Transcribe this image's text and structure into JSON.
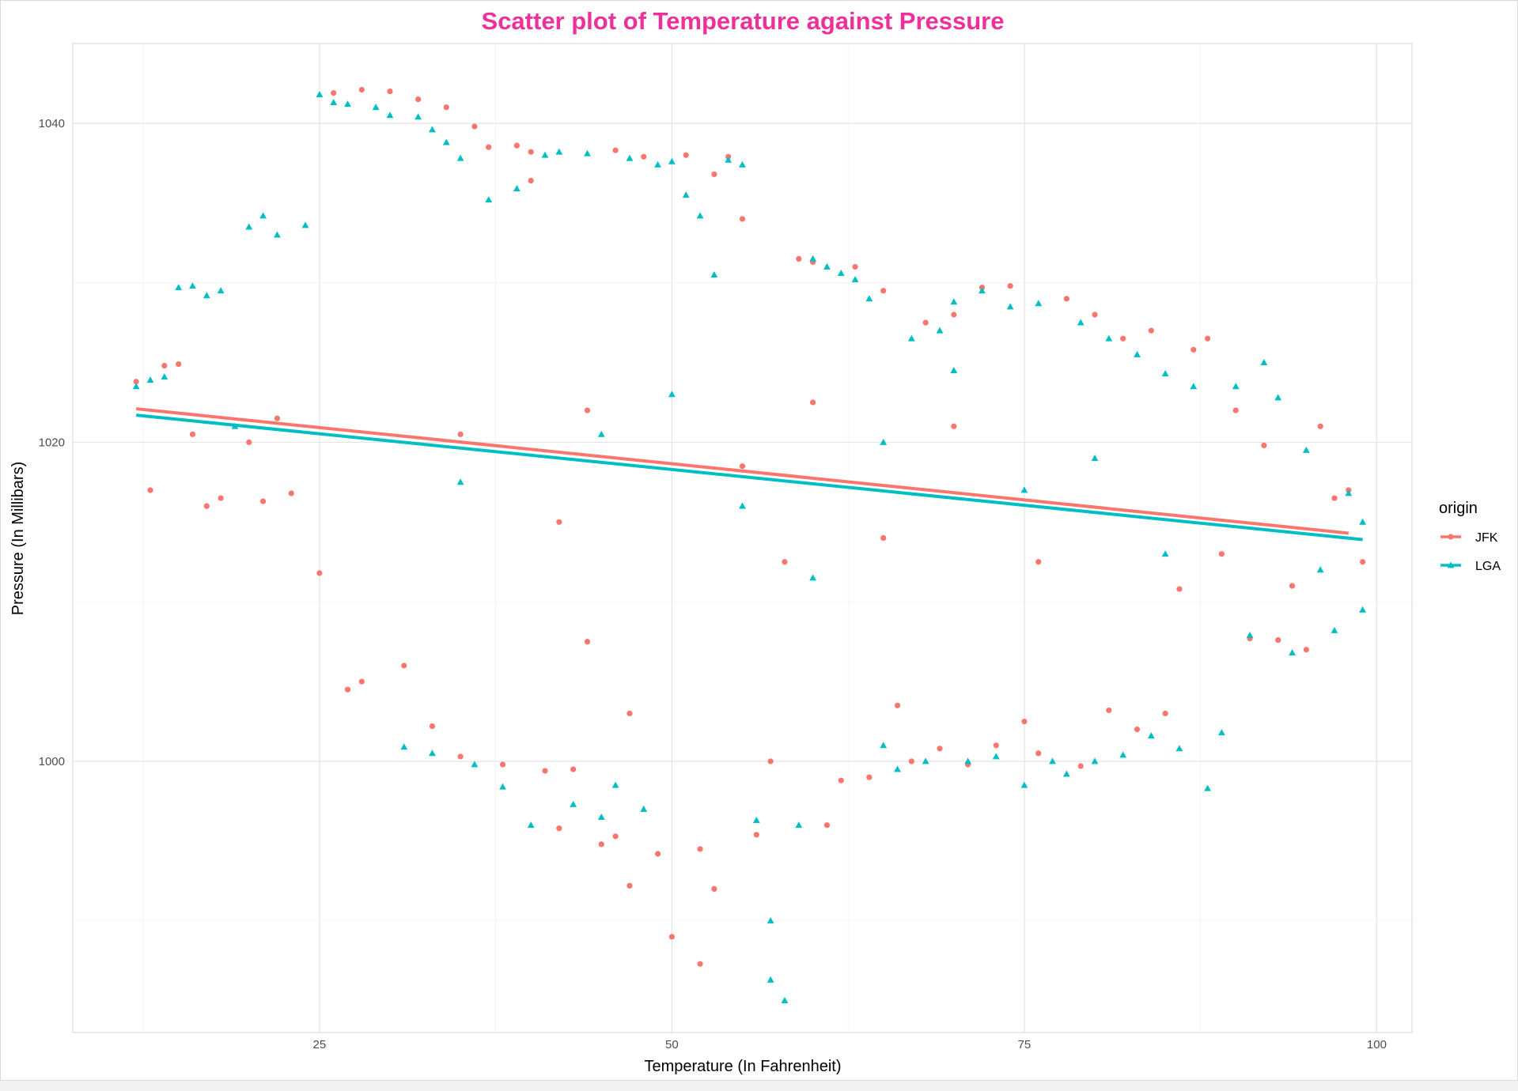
{
  "chart_data": {
    "type": "scatter",
    "title": "Scatter plot of Temperature against Pressure",
    "title_color": "#f0309a",
    "xlabel": "Temperature (In Fahrenheit)",
    "ylabel": "Pressure (In Millibars)",
    "xlim": [
      7.5,
      102.5
    ],
    "ylim": [
      983,
      1045
    ],
    "x_ticks": [
      25,
      50,
      75,
      100
    ],
    "x_tick_labels": [
      "25",
      "50",
      "75",
      "100"
    ],
    "y_ticks": [
      1000,
      1020,
      1040
    ],
    "y_tick_labels": [
      "1000",
      "1020",
      "1040"
    ],
    "grid": true,
    "legend": {
      "title": "origin",
      "position": "right",
      "entries": [
        "JFK",
        "LGA"
      ]
    },
    "series": [
      {
        "name": "JFK",
        "marker": "circle",
        "color": "#f8766d",
        "trend_line": {
          "x": [
            12,
            98
          ],
          "y": [
            1022.1,
            1014.3
          ]
        },
        "points": [
          [
            12,
            1023.8
          ],
          [
            13,
            1017
          ],
          [
            14,
            1024.8
          ],
          [
            15,
            1024.9
          ],
          [
            16,
            1020.5
          ],
          [
            17,
            1016
          ],
          [
            18,
            1016.5
          ],
          [
            20,
            1020
          ],
          [
            21,
            1016.3
          ],
          [
            22,
            1021.5
          ],
          [
            23,
            1016.8
          ],
          [
            25,
            1011.8
          ],
          [
            26,
            1041.9
          ],
          [
            28,
            1042.1
          ],
          [
            28,
            1005
          ],
          [
            27,
            1004.5
          ],
          [
            30,
            1042
          ],
          [
            31,
            1006
          ],
          [
            32,
            1041.5
          ],
          [
            34,
            1041
          ],
          [
            33,
            1002.2
          ],
          [
            36,
            1039.8
          ],
          [
            35,
            1000.3
          ],
          [
            37,
            1038.5
          ],
          [
            38,
            999.8
          ],
          [
            39,
            1038.6
          ],
          [
            40,
            1038.2
          ],
          [
            41,
            999.4
          ],
          [
            40,
            1036.4
          ],
          [
            42,
            995.8
          ],
          [
            43,
            999.5
          ],
          [
            44,
            1007.5
          ],
          [
            45,
            994.8
          ],
          [
            46,
            1038.3
          ],
          [
            46,
            995.3
          ],
          [
            47,
            992.2
          ],
          [
            47,
            1003
          ],
          [
            48,
            1037.9
          ],
          [
            49,
            994.2
          ],
          [
            50,
            989
          ],
          [
            51,
            1038
          ],
          [
            52,
            987.3
          ],
          [
            52,
            994.5
          ],
          [
            53,
            1036.8
          ],
          [
            53,
            992
          ],
          [
            54,
            1037.9
          ],
          [
            55,
            1034
          ],
          [
            56,
            995.4
          ],
          [
            57,
            1000
          ],
          [
            58,
            1012.5
          ],
          [
            59,
            1031.5
          ],
          [
            60,
            1031.3
          ],
          [
            61,
            996
          ],
          [
            62,
            998.8
          ],
          [
            63,
            1031
          ],
          [
            64,
            999
          ],
          [
            65,
            1029.5
          ],
          [
            66,
            1003.5
          ],
          [
            67,
            1000
          ],
          [
            68,
            1027.5
          ],
          [
            69,
            1000.8
          ],
          [
            70,
            1028
          ],
          [
            71,
            999.8
          ],
          [
            72,
            1029.7
          ],
          [
            73,
            1001
          ],
          [
            74,
            1029.8
          ],
          [
            75,
            1002.5
          ],
          [
            76,
            1000.5
          ],
          [
            78,
            1029
          ],
          [
            79,
            999.7
          ],
          [
            80,
            1028
          ],
          [
            81,
            1003.2
          ],
          [
            82,
            1026.5
          ],
          [
            83,
            1002
          ],
          [
            84,
            1027
          ],
          [
            85,
            1003
          ],
          [
            86,
            1010.8
          ],
          [
            87,
            1025.8
          ],
          [
            88,
            1026.5
          ],
          [
            89,
            1013
          ],
          [
            90,
            1022
          ],
          [
            91,
            1007.7
          ],
          [
            92,
            1019.8
          ],
          [
            93,
            1007.6
          ],
          [
            94,
            1011
          ],
          [
            95,
            1007
          ],
          [
            96,
            1021
          ],
          [
            97,
            1016.5
          ],
          [
            98,
            1017
          ],
          [
            99,
            1012.5
          ],
          [
            44,
            1022
          ],
          [
            55,
            1018.5
          ],
          [
            65,
            1014
          ],
          [
            76,
            1012.5
          ],
          [
            35,
            1020.5
          ],
          [
            42,
            1015
          ],
          [
            60,
            1022.5
          ],
          [
            70,
            1021
          ]
        ]
      },
      {
        "name": "LGA",
        "marker": "triangle",
        "color": "#00bfc4",
        "trend_line": {
          "x": [
            12,
            99
          ],
          "y": [
            1021.7,
            1013.9
          ]
        },
        "points": [
          [
            12,
            1023.5
          ],
          [
            13,
            1023.9
          ],
          [
            14,
            1024.1
          ],
          [
            15,
            1029.7
          ],
          [
            16,
            1029.8
          ],
          [
            17,
            1029.2
          ],
          [
            18,
            1029.5
          ],
          [
            19,
            1021
          ],
          [
            20,
            1033.5
          ],
          [
            21,
            1034.2
          ],
          [
            22,
            1033
          ],
          [
            24,
            1033.6
          ],
          [
            25,
            1041.8
          ],
          [
            26,
            1041.3
          ],
          [
            27,
            1041.2
          ],
          [
            29,
            1041
          ],
          [
            30,
            1040.5
          ],
          [
            31,
            1000.9
          ],
          [
            32,
            1040.4
          ],
          [
            33,
            1000.5
          ],
          [
            33,
            1039.6
          ],
          [
            34,
            1038.8
          ],
          [
            35,
            1037.8
          ],
          [
            36,
            999.8
          ],
          [
            37,
            1035.2
          ],
          [
            38,
            998.4
          ],
          [
            39,
            1035.9
          ],
          [
            40,
            996
          ],
          [
            41,
            1038
          ],
          [
            42,
            1038.2
          ],
          [
            43,
            997.3
          ],
          [
            44,
            1038.1
          ],
          [
            45,
            996.5
          ],
          [
            46,
            998.5
          ],
          [
            47,
            1037.8
          ],
          [
            48,
            997
          ],
          [
            49,
            1037.4
          ],
          [
            50,
            1037.6
          ],
          [
            51,
            1035.5
          ],
          [
            52,
            1034.2
          ],
          [
            53,
            1030.5
          ],
          [
            54,
            1037.7
          ],
          [
            55,
            1037.4
          ],
          [
            56,
            996.3
          ],
          [
            57,
            990
          ],
          [
            57,
            986.3
          ],
          [
            58,
            985
          ],
          [
            59,
            996
          ],
          [
            60,
            1031.5
          ],
          [
            61,
            1031
          ],
          [
            62,
            1030.6
          ],
          [
            63,
            1030.2
          ],
          [
            64,
            1029
          ],
          [
            65,
            1001
          ],
          [
            66,
            999.5
          ],
          [
            67,
            1026.5
          ],
          [
            68,
            1000
          ],
          [
            69,
            1027
          ],
          [
            70,
            1028.8
          ],
          [
            71,
            1000
          ],
          [
            72,
            1029.5
          ],
          [
            73,
            1000.3
          ],
          [
            74,
            1028.5
          ],
          [
            75,
            998.5
          ],
          [
            76,
            1028.7
          ],
          [
            77,
            1000
          ],
          [
            78,
            999.2
          ],
          [
            79,
            1027.5
          ],
          [
            80,
            1000
          ],
          [
            81,
            1026.5
          ],
          [
            82,
            1000.4
          ],
          [
            83,
            1025.5
          ],
          [
            84,
            1001.6
          ],
          [
            85,
            1024.3
          ],
          [
            86,
            1000.8
          ],
          [
            87,
            1023.5
          ],
          [
            88,
            998.3
          ],
          [
            89,
            1001.8
          ],
          [
            90,
            1023.5
          ],
          [
            91,
            1007.9
          ],
          [
            92,
            1025
          ],
          [
            93,
            1022.8
          ],
          [
            94,
            1006.8
          ],
          [
            95,
            1019.5
          ],
          [
            96,
            1012
          ],
          [
            97,
            1008.2
          ],
          [
            98,
            1016.8
          ],
          [
            99,
            1015
          ],
          [
            99,
            1009.5
          ],
          [
            45,
            1020.5
          ],
          [
            55,
            1016
          ],
          [
            65,
            1020
          ],
          [
            75,
            1017
          ],
          [
            85,
            1013
          ],
          [
            35,
            1017.5
          ],
          [
            50,
            1023
          ],
          [
            60,
            1011.5
          ],
          [
            70,
            1024.5
          ],
          [
            80,
            1019
          ]
        ]
      }
    ]
  }
}
